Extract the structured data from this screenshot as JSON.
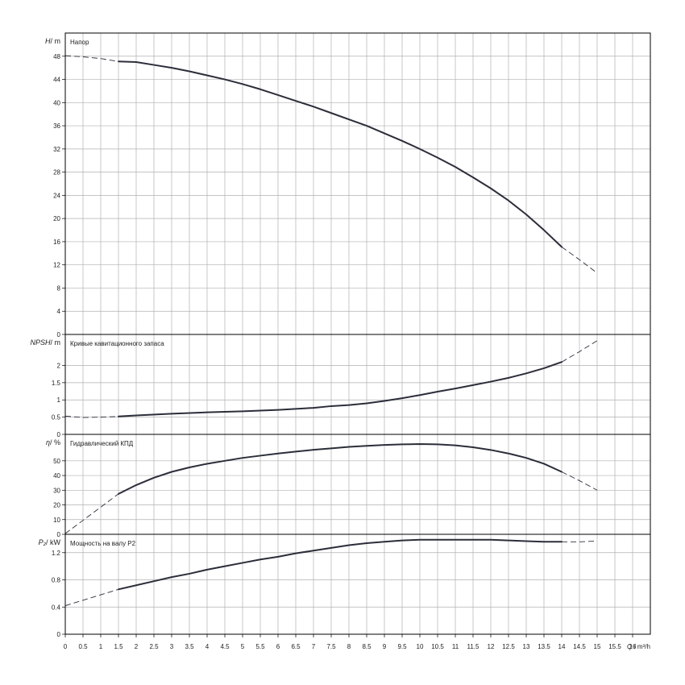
{
  "chart_data": {
    "type": "line",
    "x_axis": {
      "label": "Q",
      "unit": "m³/h",
      "range": [
        0,
        16.5
      ],
      "ticks": [
        "0",
        "0.5",
        "1",
        "1.5",
        "2",
        "2.5",
        "3",
        "3.5",
        "4",
        "4.5",
        "5",
        "5.5",
        "6",
        "6.5",
        "7",
        "7.5",
        "8",
        "8.5",
        "9",
        "9.5",
        "10",
        "10.5",
        "11",
        "11.5",
        "12",
        "12.5",
        "13",
        "13.5",
        "14",
        "14.5",
        "15",
        "15.5",
        "16"
      ]
    },
    "panels": [
      {
        "id": "head",
        "title": "Напор",
        "ylabel": "H",
        "yunit": "m",
        "ylim": [
          0,
          52
        ],
        "yticks": [
          "0",
          "4",
          "8",
          "12",
          "16",
          "20",
          "24",
          "28",
          "32",
          "36",
          "40",
          "44",
          "48"
        ],
        "curve": {
          "solid": [
            [
              1.5,
              47.1
            ],
            [
              2,
              47.0
            ],
            [
              2.5,
              46.5
            ],
            [
              3,
              46.0
            ],
            [
              3.5,
              45.4
            ],
            [
              4,
              44.7
            ],
            [
              4.5,
              44.0
            ],
            [
              5,
              43.2
            ],
            [
              5.5,
              42.3
            ],
            [
              6,
              41.3
            ],
            [
              6.5,
              40.3
            ],
            [
              7,
              39.3
            ],
            [
              7.5,
              38.2
            ],
            [
              8,
              37.1
            ],
            [
              8.5,
              36.0
            ],
            [
              9,
              34.7
            ],
            [
              9.5,
              33.4
            ],
            [
              10,
              32.0
            ],
            [
              10.5,
              30.5
            ],
            [
              11,
              28.9
            ],
            [
              11.5,
              27.1
            ],
            [
              12,
              25.2
            ],
            [
              12.5,
              23.1
            ],
            [
              13,
              20.7
            ],
            [
              13.5,
              18.0
            ],
            [
              14,
              15.1
            ]
          ],
          "dashed": [
            [
              0,
              48.1
            ],
            [
              0.5,
              47.9
            ],
            [
              1,
              47.6
            ],
            [
              1.5,
              47.1
            ]
          ],
          "dashed_end": [
            [
              14,
              15.1
            ],
            [
              14.5,
              12.9
            ],
            [
              15,
              10.6
            ]
          ]
        }
      },
      {
        "id": "npsh",
        "title": "Кривые кавитационного запаса",
        "ylabel": "NPSH",
        "yunit": "m",
        "ylim": [
          0,
          2.9
        ],
        "yticks": [
          "0",
          "0.5",
          "1",
          "1.5",
          "2"
        ],
        "curve": {
          "solid": [
            [
              1.5,
              0.52
            ],
            [
              2,
              0.55
            ],
            [
              3,
              0.6
            ],
            [
              4,
              0.64
            ],
            [
              5,
              0.67
            ],
            [
              6,
              0.71
            ],
            [
              7,
              0.77
            ],
            [
              7.5,
              0.82
            ],
            [
              8,
              0.85
            ],
            [
              8.5,
              0.9
            ],
            [
              9,
              0.97
            ],
            [
              9.5,
              1.05
            ],
            [
              10,
              1.14
            ],
            [
              10.5,
              1.24
            ],
            [
              11,
              1.33
            ],
            [
              11.5,
              1.43
            ],
            [
              12,
              1.53
            ],
            [
              12.5,
              1.64
            ],
            [
              13,
              1.77
            ],
            [
              13.5,
              1.92
            ],
            [
              14,
              2.1
            ]
          ],
          "dashed": [
            [
              0,
              0.53
            ],
            [
              0.5,
              0.49
            ],
            [
              1,
              0.5
            ],
            [
              1.5,
              0.52
            ]
          ],
          "dashed_end": [
            [
              14,
              2.1
            ],
            [
              14.5,
              2.4
            ],
            [
              15,
              2.72
            ]
          ]
        }
      },
      {
        "id": "eta",
        "title": "Гидравлический КПД",
        "ylabel": "η",
        "yunit": "%",
        "ylim": [
          0,
          68
        ],
        "yticks": [
          "0",
          "10",
          "20",
          "30",
          "40",
          "50"
        ],
        "curve": {
          "solid": [
            [
              1.5,
              27.5
            ],
            [
              2,
              33.5
            ],
            [
              2.5,
              38.5
            ],
            [
              3,
              42.5
            ],
            [
              3.5,
              45.5
            ],
            [
              4,
              48.0
            ],
            [
              4.5,
              50.0
            ],
            [
              5,
              52.0
            ],
            [
              5.5,
              53.5
            ],
            [
              6,
              55.0
            ],
            [
              6.5,
              56.3
            ],
            [
              7,
              57.5
            ],
            [
              7.5,
              58.5
            ],
            [
              8,
              59.5
            ],
            [
              8.5,
              60.2
            ],
            [
              9,
              60.8
            ],
            [
              9.5,
              61.2
            ],
            [
              10,
              61.4
            ],
            [
              10.5,
              61.2
            ],
            [
              11,
              60.5
            ],
            [
              11.5,
              59.2
            ],
            [
              12,
              57.4
            ],
            [
              12.5,
              55.0
            ],
            [
              13,
              52.0
            ],
            [
              13.5,
              48.0
            ],
            [
              14,
              42.5
            ]
          ],
          "dashed": [
            [
              0,
              0.5
            ],
            [
              0.5,
              9.5
            ],
            [
              1,
              18.5
            ],
            [
              1.5,
              27.5
            ]
          ],
          "dashed_end": [
            [
              14,
              42.5
            ],
            [
              14.5,
              36.5
            ],
            [
              15,
              30.0
            ]
          ]
        }
      },
      {
        "id": "p2",
        "title": "Мощность на валу P2",
        "ylabel": "P₂",
        "yunit": "kW",
        "ylim": [
          0,
          1.47
        ],
        "yticks": [
          "0",
          "0.4",
          "0.8",
          "1.2"
        ],
        "curve": {
          "solid": [
            [
              1.5,
              0.66
            ],
            [
              2,
              0.72
            ],
            [
              2.5,
              0.78
            ],
            [
              3,
              0.84
            ],
            [
              3.5,
              0.89
            ],
            [
              4,
              0.95
            ],
            [
              4.5,
              1.0
            ],
            [
              5,
              1.05
            ],
            [
              5.5,
              1.1
            ],
            [
              6,
              1.14
            ],
            [
              6.5,
              1.19
            ],
            [
              7,
              1.23
            ],
            [
              7.5,
              1.27
            ],
            [
              8,
              1.31
            ],
            [
              8.5,
              1.34
            ],
            [
              9,
              1.36
            ],
            [
              9.5,
              1.38
            ],
            [
              10,
              1.39
            ],
            [
              10.5,
              1.39
            ],
            [
              11,
              1.39
            ],
            [
              11.5,
              1.39
            ],
            [
              12,
              1.39
            ],
            [
              12.5,
              1.38
            ],
            [
              13,
              1.37
            ],
            [
              13.5,
              1.36
            ],
            [
              14,
              1.36
            ]
          ],
          "dashed": [
            [
              0,
              0.42
            ],
            [
              0.5,
              0.5
            ],
            [
              1,
              0.58
            ],
            [
              1.5,
              0.66
            ]
          ],
          "dashed_end": [
            [
              14,
              1.36
            ],
            [
              14.5,
              1.36
            ],
            [
              15,
              1.37
            ]
          ]
        }
      }
    ],
    "grid": true,
    "legend": "none"
  }
}
